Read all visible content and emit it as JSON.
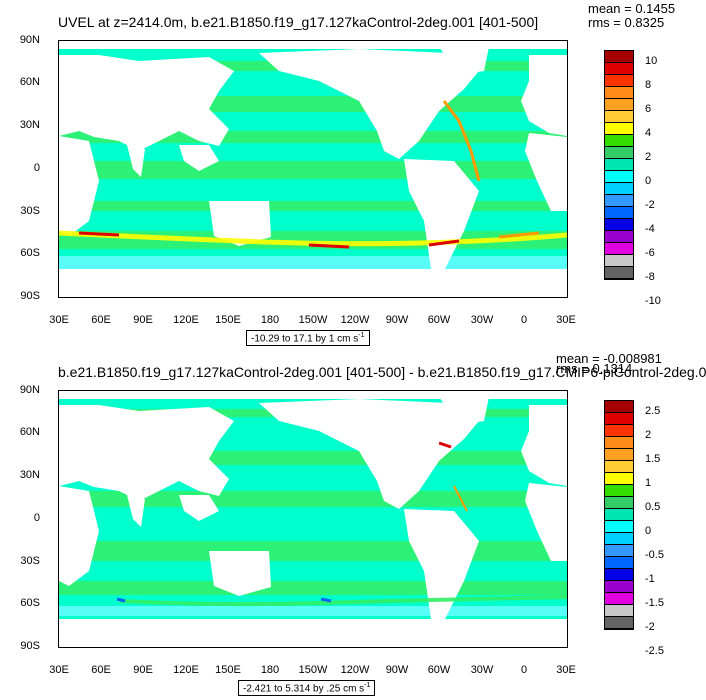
{
  "panels": [
    {
      "title": "UVEL at z=2414.0m, b.e21.B1850.f19_g17.127kaControl-2deg.001 [401-500]",
      "stats": {
        "mean": "mean = 0.1455",
        "rms": "rms = 0.8325"
      },
      "range_label": "-10.29 to 17.1 by 1 cm s",
      "range_superscript": "-1",
      "lat_ticks": [
        "90N",
        "60N",
        "30N",
        "0",
        "30S",
        "60S",
        "90S"
      ],
      "lon_ticks": [
        "30E",
        "60E",
        "90E",
        "120E",
        "150E",
        "180",
        "150W",
        "120W",
        "90W",
        "60W",
        "30W",
        "0",
        "30E"
      ],
      "colorbar": {
        "levels": [
          "10",
          "8",
          "6",
          "4",
          "2",
          "0",
          "-2",
          "-4",
          "-6",
          "-8",
          "-10"
        ],
        "colors": [
          "#a50000",
          "#dd0000",
          "#ff3300",
          "#ff8c1a",
          "#ffa020",
          "#ffcc33",
          "#ffff00",
          "#33dd00",
          "#33cc66",
          "#00e5b3",
          "#00ffff",
          "#00d0ff",
          "#3399ff",
          "#0066ff",
          "#0000e6",
          "#9900cc",
          "#e000e0",
          "#c8c8c8",
          "#646464"
        ]
      }
    },
    {
      "title": "b.e21.B1850.f19_g17.127kaControl-2deg.001 [401-500] - b.e21.B1850.f19_g17.CMIP6-piControl-2deg.0",
      "stats": {
        "mean": "mean = -0.008981",
        "rms": "rms = 0.1314"
      },
      "range_label": "-2.421 to 5.314 by .25 cm s",
      "range_superscript": "-1",
      "lat_ticks": [
        "90N",
        "60N",
        "30N",
        "0",
        "30S",
        "60S",
        "90S"
      ],
      "lon_ticks": [
        "30E",
        "60E",
        "90E",
        "120E",
        "150E",
        "180",
        "150W",
        "120W",
        "90W",
        "60W",
        "30W",
        "0",
        "30E"
      ],
      "colorbar": {
        "levels": [
          "2.5",
          "2",
          "1.5",
          "1",
          "0.5",
          "0",
          "-0.5",
          "-1",
          "-1.5",
          "-2",
          "-2.5"
        ],
        "colors": [
          "#a50000",
          "#dd0000",
          "#ff3300",
          "#ff8c1a",
          "#ffa020",
          "#ffcc33",
          "#ffff00",
          "#33dd00",
          "#33cc66",
          "#00e5b3",
          "#00ffff",
          "#00d0ff",
          "#3399ff",
          "#0066ff",
          "#0000e6",
          "#9900cc",
          "#e000e0",
          "#c8c8c8",
          "#646464"
        ]
      }
    }
  ],
  "colors": {
    "ocean_main": "#00ffcc",
    "ocean_band": "#33ee66",
    "ocean_light": "#66ffff",
    "land": "#ffffff",
    "current_hot": "#ffff00",
    "current_warm": "#ff9900",
    "current_red": "#dd0000",
    "current_blue": "#0066ff"
  }
}
